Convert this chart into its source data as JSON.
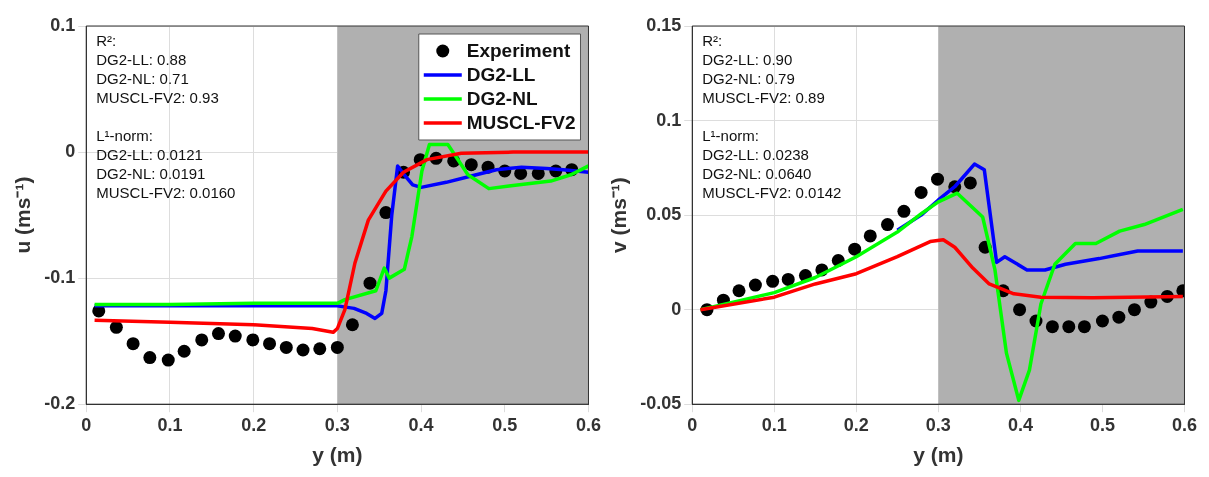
{
  "chart_data": [
    {
      "type": "line",
      "xlabel": "y (m)",
      "ylabel": "u (ms⁻¹)",
      "xlim": [
        0,
        0.6
      ],
      "ylim": [
        -0.2,
        0.1
      ],
      "xticks": [
        0,
        0.1,
        0.2,
        0.3,
        0.4,
        0.5,
        0.6
      ],
      "yticks": [
        -0.2,
        -0.1,
        0,
        0.1
      ],
      "grid": true,
      "legend": "top right",
      "bands": [
        {
          "axis": "x",
          "from": 0.3,
          "to": 0.6,
          "color": "#b0b0b0"
        }
      ],
      "annotations": [
        "R²:\nDG2-LL: 0.88\nDG2-NL: 0.71\nMUSCL-FV2: 0.93",
        "L¹-norm:\nDG2-LL: 0.0121\nDG2-NL: 0.0191\nMUSCL-FV2: 0.0160"
      ],
      "series": [
        {
          "name": "Experiment",
          "type": "scatter",
          "marker": "circle",
          "color": "#000000",
          "x": [
            0.015,
            0.036,
            0.056,
            0.076,
            0.098,
            0.117,
            0.138,
            0.158,
            0.178,
            0.199,
            0.219,
            0.239,
            0.259,
            0.279,
            0.3,
            0.318,
            0.339,
            0.358,
            0.379,
            0.399,
            0.418,
            0.439,
            0.46,
            0.48,
            0.5,
            0.519,
            0.54,
            0.561,
            0.58
          ],
          "values": [
            -0.126,
            -0.139,
            -0.152,
            -0.163,
            -0.165,
            -0.158,
            -0.149,
            -0.144,
            -0.146,
            -0.149,
            -0.152,
            -0.155,
            -0.157,
            -0.156,
            -0.155,
            -0.137,
            -0.104,
            -0.048,
            -0.016,
            -0.006,
            -0.005,
            -0.007,
            -0.01,
            -0.012,
            -0.015,
            -0.017,
            -0.017,
            -0.015,
            -0.014
          ]
        },
        {
          "name": "DG2-LL",
          "type": "line",
          "color": "#0000ff",
          "x": [
            0.01,
            0.3,
            0.32,
            0.335,
            0.345,
            0.353,
            0.358,
            0.365,
            0.372,
            0.38,
            0.39,
            0.4,
            0.43,
            0.46,
            0.49,
            0.52,
            0.55,
            0.57,
            0.6
          ],
          "values": [
            -0.122,
            -0.122,
            -0.124,
            -0.128,
            -0.132,
            -0.128,
            -0.11,
            -0.05,
            -0.011,
            -0.018,
            -0.026,
            -0.028,
            -0.024,
            -0.019,
            -0.014,
            -0.012,
            -0.013,
            -0.014,
            -0.016
          ]
        },
        {
          "name": "DG2-NL",
          "type": "line",
          "color": "#00ff00",
          "x": [
            0.01,
            0.1,
            0.2,
            0.3,
            0.309,
            0.346,
            0.356,
            0.362,
            0.38,
            0.389,
            0.401,
            0.41,
            0.432,
            0.456,
            0.481,
            0.505,
            0.555,
            0.579,
            0.6
          ],
          "values": [
            -0.121,
            -0.121,
            -0.12,
            -0.12,
            -0.117,
            -0.11,
            -0.092,
            -0.1,
            -0.093,
            -0.067,
            -0.015,
            0.006,
            0.006,
            -0.018,
            -0.029,
            -0.027,
            -0.023,
            -0.018,
            -0.011
          ]
        },
        {
          "name": "MUSCL-FV2",
          "type": "line",
          "color": "#ff0000",
          "x": [
            0.01,
            0.1,
            0.2,
            0.27,
            0.295,
            0.3,
            0.309,
            0.321,
            0.337,
            0.358,
            0.379,
            0.407,
            0.448,
            0.51,
            0.6
          ],
          "values": [
            -0.1335,
            -0.135,
            -0.137,
            -0.14,
            -0.143,
            -0.14,
            -0.125,
            -0.088,
            -0.054,
            -0.031,
            -0.016,
            -0.006,
            -0.001,
            0,
            0
          ]
        }
      ]
    },
    {
      "type": "line",
      "xlabel": "y (m)",
      "ylabel": "v (ms⁻¹)",
      "xlim": [
        0,
        0.6
      ],
      "ylim": [
        -0.05,
        0.15
      ],
      "xticks": [
        0,
        0.1,
        0.2,
        0.3,
        0.4,
        0.5,
        0.6
      ],
      "yticks": [
        -0.05,
        0,
        0.05,
        0.1,
        0.15
      ],
      "grid": true,
      "bands": [
        {
          "axis": "x",
          "from": 0.3,
          "to": 0.6,
          "color": "#b0b0b0"
        }
      ],
      "annotations": [
        "R²:\nDG2-LL: 0.90\nDG2-NL: 0.79\nMUSCL-FV2: 0.89",
        "L¹-norm:\nDG2-LL: 0.0238\nDG2-NL: 0.0640\nMUSCL-FV2: 0.0142"
      ],
      "series": [
        {
          "type": "scatter",
          "marker": "circle",
          "color": "#000000",
          "x": [
            0.018,
            0.038,
            0.057,
            0.077,
            0.098,
            0.117,
            0.138,
            0.158,
            0.178,
            0.198,
            0.217,
            0.238,
            0.258,
            0.279,
            0.299,
            0.32,
            0.339,
            0.357,
            0.379,
            0.399,
            0.419,
            0.439,
            0.459,
            0.478,
            0.5,
            0.52,
            0.539,
            0.559,
            0.579,
            0.598
          ],
          "values": [
            0,
            0.005,
            0.01,
            0.013,
            0.015,
            0.016,
            0.018,
            0.021,
            0.026,
            0.032,
            0.039,
            0.045,
            0.052,
            0.062,
            0.069,
            0.065,
            0.067,
            0.033,
            0.01,
            0,
            -0.006,
            -0.009,
            -0.009,
            -0.009,
            -0.006,
            -0.004,
            0,
            0.004,
            0.007,
            0.01
          ]
        },
        {
          "type": "line",
          "color": "#0000ff",
          "x": [
            0.25,
            0.279,
            0.3,
            0.32,
            0.344,
            0.356,
            0.371,
            0.381,
            0.408,
            0.43,
            0.455,
            0.496,
            0.543,
            0.598
          ],
          "values": [
            0.042,
            0.05,
            0.058,
            0.065,
            0.077,
            0.074,
            0.025,
            0.028,
            0.021,
            0.021,
            0.024,
            0.027,
            0.031,
            0.031
          ]
        },
        {
          "type": "line",
          "color": "#00ff00",
          "x": [
            0.01,
            0.05,
            0.1,
            0.15,
            0.2,
            0.25,
            0.28,
            0.3,
            0.323,
            0.354,
            0.369,
            0.383,
            0.398,
            0.411,
            0.425,
            0.442,
            0.467,
            0.492,
            0.521,
            0.551,
            0.598
          ],
          "values": [
            0,
            0.004,
            0.009,
            0.017,
            0.028,
            0.041,
            0.051,
            0.057,
            0.0616,
            0.049,
            0.021,
            -0.023,
            -0.048,
            -0.032,
            0.003,
            0.024,
            0.035,
            0.035,
            0.0415,
            0.045,
            0.053
          ]
        },
        {
          "type": "line",
          "color": "#ff0000",
          "x": [
            0.01,
            0.1,
            0.15,
            0.2,
            0.25,
            0.29,
            0.306,
            0.32,
            0.342,
            0.362,
            0.392,
            0.425,
            0.488,
            0.598
          ],
          "values": [
            0,
            0.0066,
            0.0136,
            0.019,
            0.028,
            0.036,
            0.037,
            0.033,
            0.022,
            0.0136,
            0.0084,
            0.0066,
            0.0063,
            0.007
          ]
        }
      ]
    }
  ]
}
